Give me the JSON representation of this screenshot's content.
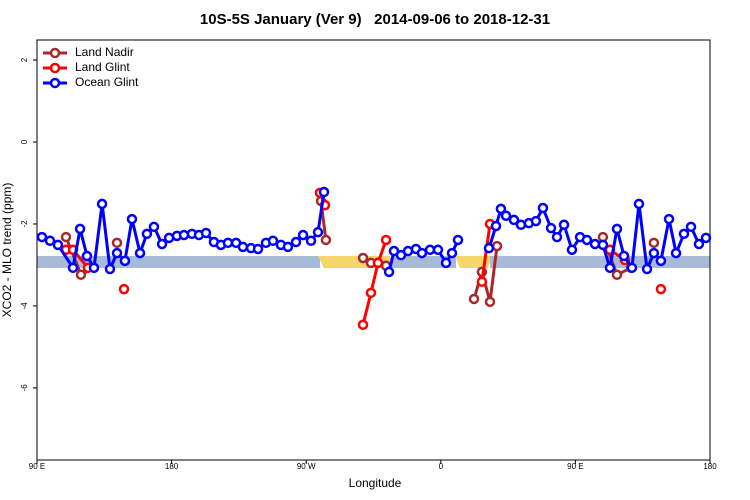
{
  "chart_data": {
    "type": "line",
    "title": "10S-5S January (Ver 9)   2014-09-06 to 2018-12-31",
    "x_label": "Longitude",
    "y_label": "XCO2 - MLO trend (ppm)",
    "xlim": [
      90,
      540
    ],
    "ylim": [
      -7.76,
      2.49
    ],
    "xticks": [
      {
        "value": 90,
        "label": "90 E"
      },
      180,
      {
        "value": 270,
        "label": "90 W"
      },
      {
        "value": 360,
        "label": "0"
      },
      {
        "value": 450,
        "label": "90 E"
      },
      {
        "value": 540,
        "label": "180"
      }
    ],
    "yticks": [
      2,
      0,
      -2,
      -4,
      -6
    ],
    "legend": "top-left",
    "series": [
      {
        "name": "Land Nadir",
        "color": "#a52a2a",
        "x": [
          109.4,
          119.4,
          128.1,
          null,
          143.5,
          null,
          279.9,
          283.2,
          null,
          308.0,
          313.3,
          318.0,
          323.4,
          null,
          382.2,
          387.5,
          392.9,
          397.6,
          null,
          468.4,
          477.8,
          487.2,
          null,
          502.5
        ],
        "values": [
          -2.32,
          -3.24,
          -3.07,
          null,
          -2.46,
          null,
          -1.44,
          -2.39,
          null,
          -2.83,
          -2.95,
          -2.95,
          -3.02,
          null,
          -3.83,
          -3.17,
          -3.9,
          -2.54,
          null,
          -2.32,
          -3.24,
          -3.07,
          null,
          -2.46
        ]
      },
      {
        "name": "Land Glint",
        "color": "#ff0000",
        "x": [
          109.4,
          114.1,
          124.1,
          null,
          148.2,
          null,
          279.2,
          282.6,
          null,
          308.0,
          313.3,
          318.0,
          323.4,
          null,
          387.5,
          392.9,
          396.9,
          null,
          473.1,
          483.1,
          null,
          507.2
        ],
        "values": [
          -2.63,
          -2.63,
          -3.07,
          null,
          -3.59,
          null,
          -1.24,
          -1.54,
          null,
          -4.46,
          -3.68,
          -2.95,
          -2.39,
          null,
          -3.41,
          -2.0,
          -2.05,
          null,
          -2.63,
          -2.88,
          null,
          -3.59
        ]
      },
      {
        "name": "Ocean Glint",
        "color": "#0000ff",
        "x": [
          93.3,
          98.7,
          104.0,
          114.1,
          118.8,
          123.4,
          128.1,
          133.5,
          138.8,
          143.5,
          148.8,
          153.5,
          158.9,
          163.5,
          168.2,
          173.6,
          178.3,
          183.6,
          188.3,
          193.6,
          198.3,
          203.0,
          208.3,
          213.0,
          217.7,
          223.1,
          227.7,
          233.1,
          237.8,
          243.1,
          247.8,
          253.1,
          257.8,
          263.2,
          267.9,
          273.2,
          277.9,
          281.9,
          null,
          325.4,
          328.7,
          333.4,
          338.1,
          343.4,
          347.4,
          352.8,
          358.1,
          363.5,
          367.5,
          371.5,
          null,
          392.2,
          396.9,
          400.2,
          403.6,
          408.9,
          413.6,
          418.9,
          423.6,
          428.3,
          433.7,
          437.7,
          442.4,
          447.7,
          453.1,
          457.7,
          463.1,
          468.4,
          473.1,
          477.8,
          482.5,
          487.8,
          492.5,
          497.9,
          502.5,
          507.2,
          512.6,
          517.3,
          522.6,
          527.3,
          532.6,
          537.3
        ],
        "values": [
          -2.32,
          -2.41,
          -2.51,
          -3.07,
          -2.12,
          -2.78,
          -3.07,
          -1.51,
          -3.1,
          -2.71,
          -2.9,
          -1.88,
          -2.71,
          -2.24,
          -2.07,
          -2.49,
          -2.34,
          -2.29,
          -2.27,
          -2.24,
          -2.27,
          -2.22,
          -2.44,
          -2.51,
          -2.46,
          -2.46,
          -2.56,
          -2.59,
          -2.61,
          -2.46,
          -2.41,
          -2.51,
          -2.56,
          -2.44,
          -2.27,
          -2.41,
          -2.2,
          -1.22,
          null,
          -3.17,
          -2.66,
          -2.76,
          -2.66,
          -2.61,
          -2.71,
          -2.63,
          -2.63,
          -2.95,
          -2.71,
          -2.39,
          null,
          -2.59,
          -2.05,
          -1.63,
          -1.8,
          -1.9,
          -2.02,
          -1.98,
          -1.93,
          -1.61,
          -2.1,
          -2.32,
          -2.02,
          -2.63,
          -2.32,
          -2.39,
          -2.49,
          -2.51,
          -3.07,
          -2.12,
          -2.78,
          -3.07,
          -1.51,
          -3.1,
          -2.71,
          -2.9,
          -1.88,
          -2.71,
          -2.24,
          -2.07,
          -2.49,
          -2.34
        ]
      }
    ]
  }
}
